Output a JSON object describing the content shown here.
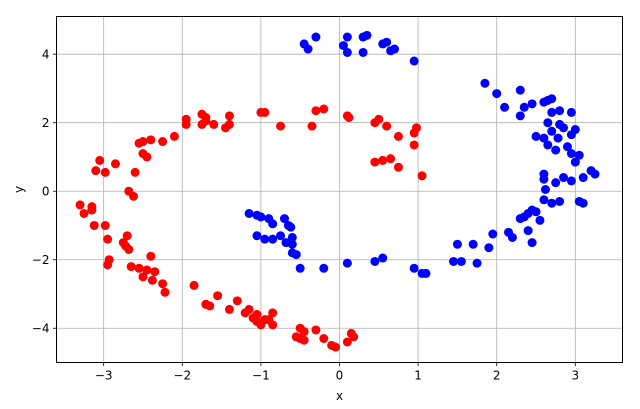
{
  "chart_data": {
    "type": "scatter",
    "title": "",
    "xlabel": "x",
    "ylabel": "y",
    "xlim": [
      -3.6,
      3.6
    ],
    "ylim": [
      -5.0,
      5.1
    ],
    "xticks": [
      -3,
      -2,
      -1,
      0,
      1,
      2,
      3
    ],
    "yticks": [
      -4,
      -2,
      0,
      2,
      4
    ],
    "xtick_labels": [
      "−3",
      "−2",
      "−1",
      "0",
      "1",
      "2",
      "3"
    ],
    "ytick_labels": [
      "−4",
      "−2",
      "0",
      "2",
      "4"
    ],
    "grid": true,
    "series": [
      {
        "color": "#ff0000",
        "points": [
          [
            -3.3,
            -0.4
          ],
          [
            -3.25,
            -0.65
          ],
          [
            -3.15,
            -0.45
          ],
          [
            -3.15,
            -0.55
          ],
          [
            -3.12,
            -1.0
          ],
          [
            -3.1,
            0.6
          ],
          [
            -3.05,
            0.9
          ],
          [
            -2.98,
            0.55
          ],
          [
            -2.98,
            -1.0
          ],
          [
            -2.95,
            -1.4
          ],
          [
            -2.93,
            -2.0
          ],
          [
            -2.95,
            -2.15
          ],
          [
            -2.85,
            0.8
          ],
          [
            -2.75,
            -1.5
          ],
          [
            -2.72,
            -1.6
          ],
          [
            -2.7,
            -1.3
          ],
          [
            -2.68,
            -1.7
          ],
          [
            -2.68,
            0.0
          ],
          [
            -2.65,
            -2.2
          ],
          [
            -2.62,
            -0.15
          ],
          [
            -2.6,
            0.55
          ],
          [
            -2.55,
            1.4
          ],
          [
            -2.5,
            1.1
          ],
          [
            -2.5,
            1.45
          ],
          [
            -2.55,
            -2.25
          ],
          [
            -2.5,
            -2.5
          ],
          [
            -2.45,
            -2.3
          ],
          [
            -2.45,
            1.0
          ],
          [
            -2.4,
            1.5
          ],
          [
            -2.4,
            -1.9
          ],
          [
            -2.38,
            -2.6
          ],
          [
            -2.35,
            -2.35
          ],
          [
            -2.25,
            -2.7
          ],
          [
            -2.22,
            -2.95
          ],
          [
            -2.25,
            1.45
          ],
          [
            -2.1,
            1.6
          ],
          [
            -1.95,
            2.1
          ],
          [
            -1.95,
            1.95
          ],
          [
            -1.85,
            -2.75
          ],
          [
            -1.75,
            2.25
          ],
          [
            -1.75,
            1.95
          ],
          [
            -1.7,
            2.05
          ],
          [
            -1.7,
            2.15
          ],
          [
            -1.7,
            -3.3
          ],
          [
            -1.65,
            -3.35
          ],
          [
            -1.6,
            1.95
          ],
          [
            -1.55,
            -3.05
          ],
          [
            -1.45,
            1.85
          ],
          [
            -1.4,
            2.2
          ],
          [
            -1.4,
            1.95
          ],
          [
            -1.4,
            -3.45
          ],
          [
            -1.3,
            -3.2
          ],
          [
            -1.2,
            -3.55
          ],
          [
            -1.15,
            -3.45
          ],
          [
            -1.1,
            -3.7
          ],
          [
            -1.05,
            -3.6
          ],
          [
            -1.05,
            -3.8
          ],
          [
            -1.0,
            2.3
          ],
          [
            -1.0,
            -3.9
          ],
          [
            -0.95,
            2.3
          ],
          [
            -0.95,
            -3.75
          ],
          [
            -0.9,
            -3.75
          ],
          [
            -0.85,
            -3.9
          ],
          [
            -0.85,
            -3.55
          ],
          [
            -0.75,
            1.9
          ],
          [
            -0.55,
            -4.25
          ],
          [
            -0.5,
            -4.3
          ],
          [
            -0.5,
            -4.0
          ],
          [
            -0.45,
            -4.1
          ],
          [
            -0.45,
            -4.35
          ],
          [
            -0.35,
            1.9
          ],
          [
            -0.3,
            2.35
          ],
          [
            -0.3,
            -4.05
          ],
          [
            -0.2,
            2.4
          ],
          [
            -0.2,
            -4.3
          ],
          [
            -0.1,
            -4.5
          ],
          [
            -0.05,
            -4.55
          ],
          [
            0.1,
            2.2
          ],
          [
            0.12,
            2.15
          ],
          [
            0.1,
            -4.4
          ],
          [
            0.15,
            -4.15
          ],
          [
            0.18,
            -4.25
          ],
          [
            0.45,
            2.0
          ],
          [
            0.45,
            0.85
          ],
          [
            0.5,
            2.1
          ],
          [
            0.55,
            0.9
          ],
          [
            0.6,
            1.9
          ],
          [
            0.65,
            0.95
          ],
          [
            0.75,
            1.6
          ],
          [
            0.75,
            0.7
          ],
          [
            0.95,
            1.7
          ],
          [
            0.98,
            1.85
          ],
          [
            0.95,
            1.35
          ],
          [
            1.05,
            0.45
          ]
        ]
      },
      {
        "color": "#0000ff",
        "points": [
          [
            -1.15,
            -0.65
          ],
          [
            -1.05,
            -0.7
          ],
          [
            -1.05,
            -1.3
          ],
          [
            -1.0,
            -0.75
          ],
          [
            -0.95,
            -1.4
          ],
          [
            -0.9,
            -0.8
          ],
          [
            -0.85,
            -1.4
          ],
          [
            -0.85,
            -0.95
          ],
          [
            -0.75,
            -1.3
          ],
          [
            -0.7,
            -0.8
          ],
          [
            -0.68,
            -1.5
          ],
          [
            -0.65,
            -1.0
          ],
          [
            -0.62,
            -1.05
          ],
          [
            -0.6,
            -1.35
          ],
          [
            -0.6,
            -1.55
          ],
          [
            -0.55,
            -1.85
          ],
          [
            -0.6,
            -1.8
          ],
          [
            -0.5,
            -2.25
          ],
          [
            -0.45,
            4.3
          ],
          [
            -0.4,
            4.15
          ],
          [
            -0.3,
            4.5
          ],
          [
            -0.2,
            -2.25
          ],
          [
            0.05,
            4.25
          ],
          [
            0.1,
            4.5
          ],
          [
            0.1,
            4.05
          ],
          [
            0.1,
            -2.1
          ],
          [
            0.3,
            4.05
          ],
          [
            0.3,
            4.5
          ],
          [
            0.35,
            4.55
          ],
          [
            0.45,
            -2.05
          ],
          [
            0.55,
            -1.95
          ],
          [
            0.55,
            4.3
          ],
          [
            0.6,
            4.35
          ],
          [
            0.65,
            4.1
          ],
          [
            0.7,
            4.15
          ],
          [
            0.95,
            3.8
          ],
          [
            0.95,
            -2.25
          ],
          [
            1.05,
            -2.4
          ],
          [
            1.1,
            -2.4
          ],
          [
            1.45,
            -2.05
          ],
          [
            1.5,
            -1.55
          ],
          [
            1.55,
            -2.05
          ],
          [
            1.7,
            -1.55
          ],
          [
            1.75,
            -2.1
          ],
          [
            1.85,
            3.15
          ],
          [
            1.9,
            -1.65
          ],
          [
            1.95,
            -1.25
          ],
          [
            2.0,
            2.85
          ],
          [
            2.1,
            2.45
          ],
          [
            2.15,
            -1.2
          ],
          [
            2.2,
            -1.35
          ],
          [
            2.3,
            2.95
          ],
          [
            2.3,
            2.2
          ],
          [
            2.3,
            -0.8
          ],
          [
            2.35,
            -0.75
          ],
          [
            2.35,
            2.45
          ],
          [
            2.4,
            -0.65
          ],
          [
            2.4,
            -1.15
          ],
          [
            2.45,
            -0.55
          ],
          [
            2.45,
            2.55
          ],
          [
            2.45,
            -1.5
          ],
          [
            2.5,
            -0.6
          ],
          [
            2.5,
            1.6
          ],
          [
            2.55,
            -0.85
          ],
          [
            2.6,
            2.6
          ],
          [
            2.6,
            1.55
          ],
          [
            2.6,
            0.35
          ],
          [
            2.6,
            -0.25
          ],
          [
            2.6,
            0.5
          ],
          [
            2.62,
            0.05
          ],
          [
            2.65,
            2.65
          ],
          [
            2.65,
            1.35
          ],
          [
            2.65,
            2.0
          ],
          [
            2.7,
            1.75
          ],
          [
            2.7,
            2.7
          ],
          [
            2.7,
            -0.35
          ],
          [
            2.7,
            2.3
          ],
          [
            2.75,
            1.2
          ],
          [
            2.75,
            0.25
          ],
          [
            2.78,
            1.55
          ],
          [
            2.8,
            1.95
          ],
          [
            2.8,
            -0.3
          ],
          [
            2.8,
            2.35
          ],
          [
            2.85,
            1.85
          ],
          [
            2.85,
            0.4
          ],
          [
            2.9,
            1.3
          ],
          [
            2.95,
            1.65
          ],
          [
            2.95,
            1.1
          ],
          [
            2.95,
            0.3
          ],
          [
            3.0,
            1.8
          ],
          [
            3.0,
            0.85
          ],
          [
            3.05,
            -0.3
          ],
          [
            3.05,
            1.05
          ],
          [
            3.1,
            0.4
          ],
          [
            3.1,
            -0.35
          ],
          [
            3.2,
            0.6
          ],
          [
            3.25,
            0.5
          ],
          [
            2.95,
            2.3
          ]
        ]
      }
    ]
  }
}
